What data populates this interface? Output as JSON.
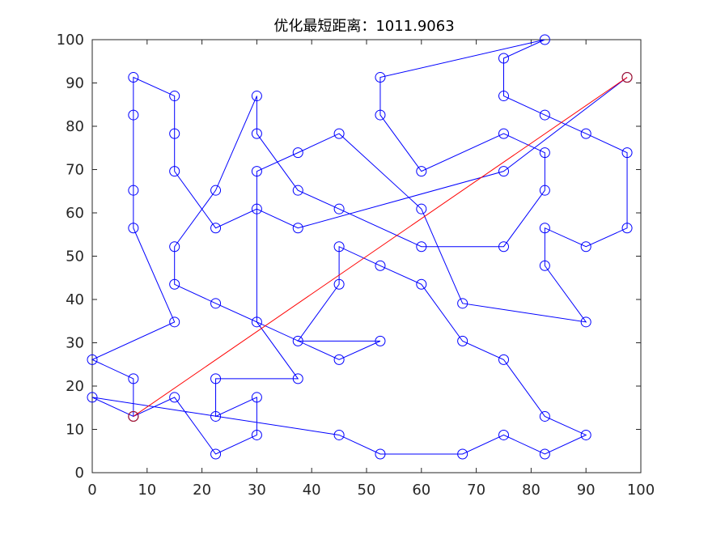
{
  "chart_data": {
    "type": "line",
    "title": "优化最短距离：1011.9063",
    "xlabel": "",
    "ylabel": "",
    "xlim": [
      0,
      100
    ],
    "ylim": [
      0,
      100
    ],
    "x_ticks": [
      "0",
      "10",
      "20",
      "30",
      "40",
      "50",
      "60",
      "70",
      "80",
      "90",
      "100"
    ],
    "y_ticks": [
      "0",
      "10",
      "20",
      "30",
      "40",
      "50",
      "60",
      "70",
      "80",
      "90",
      "100"
    ],
    "grid": false,
    "colors": {
      "route": "#0000ff",
      "start_end": "#ff0000",
      "endpoints": "#a2142f",
      "axes": "#262626"
    },
    "series": [
      {
        "line": "route",
        "marker": "circle",
        "x": [
          7.5,
          0,
          0,
          7.5,
          15,
          15,
          22.5,
          30,
          37.5,
          45,
          52.5,
          37.5,
          45,
          45,
          52.5,
          60,
          67.5,
          90,
          82.5,
          82.5,
          90,
          97.5,
          97.5,
          90,
          82.5,
          75,
          75,
          82.5,
          52.5,
          52.5,
          60,
          75,
          82.5,
          82.5,
          75,
          60,
          45,
          37.5,
          30,
          30,
          22.5,
          15,
          15,
          7.5,
          7.5,
          7.5,
          7.5,
          15,
          15,
          15,
          22.5,
          30,
          37.5,
          52.5,
          75,
          97.5
        ],
        "y": [
          13,
          17.4,
          26.1,
          21.7,
          34.8,
          43.5,
          39.1,
          34.8,
          30.4,
          26.1,
          30.4,
          30.4,
          43.5,
          52.2,
          47.8,
          43.5,
          30.4,
          26.1,
          13,
          4.3,
          8.7,
          56.5,
          73.9,
          78.3,
          82.6,
          87,
          95.7,
          100,
          91.3,
          82.6,
          69.6,
          78.3,
          73.9,
          65.2,
          52.2,
          52.2,
          60.9,
          65.2,
          78.3,
          87,
          65.2,
          52.2,
          43.5,
          56.5,
          65.2,
          82.6,
          91.3,
          87,
          78.3,
          69.6,
          56.5,
          60.9,
          56.5,
          60.9,
          69.6,
          91.3
        ]
      },
      {
        "line": "route",
        "marker": "circle",
        "x": [
          7.5,
          0,
          45,
          52.5,
          67.5,
          75,
          82.5,
          90,
          82.5,
          82.5,
          90,
          97.5,
          97.5,
          90,
          82.5,
          75,
          75,
          82.5,
          52.5,
          52.5,
          60,
          67.5,
          90,
          82.5,
          82.5,
          90,
          97.5
        ],
        "y": [
          13,
          17.4,
          8.7,
          4.3,
          4.3,
          8.7,
          4.3,
          8.7,
          13,
          4.3,
          8.7,
          56.5,
          73.9,
          78.3,
          82.6,
          87,
          95.7,
          100,
          91.3,
          82.6,
          69.6,
          39.1,
          34.8,
          47.8,
          56.5,
          52.2,
          56.5
        ]
      }
    ],
    "route": [
      [
        7.5,
        13
      ],
      [
        0,
        17.4
      ],
      [
        45,
        8.7
      ],
      [
        52.5,
        4.3
      ],
      [
        67.5,
        4.3
      ],
      [
        75,
        8.7
      ],
      [
        82.5,
        4.3
      ],
      [
        90,
        8.7
      ],
      [
        82.5,
        13
      ],
      [
        75,
        26.1
      ],
      [
        67.5,
        30.4
      ],
      [
        60,
        43.5
      ],
      [
        52.5,
        47.8
      ],
      [
        45,
        52.2
      ],
      [
        45,
        43.5
      ],
      [
        37.5,
        30.4
      ],
      [
        52.5,
        30.4
      ],
      [
        45,
        26.1
      ],
      [
        30,
        34.8
      ],
      [
        37.5,
        21.7
      ],
      [
        22.5,
        21.7
      ],
      [
        22.5,
        13
      ],
      [
        30,
        17.4
      ],
      [
        30,
        8.7
      ],
      [
        22.5,
        4.3
      ],
      [
        15,
        17.4
      ],
      [
        7.5,
        13
      ],
      [
        7.5,
        21.7
      ],
      [
        0,
        26.1
      ],
      [
        15,
        34.8
      ],
      [
        7.5,
        56.5
      ],
      [
        7.5,
        65.2
      ],
      [
        7.5,
        82.6
      ],
      [
        7.5,
        91.3
      ],
      [
        15,
        87
      ],
      [
        15,
        78.3
      ],
      [
        15,
        69.6
      ],
      [
        22.5,
        56.5
      ],
      [
        30,
        60.9
      ],
      [
        30,
        34.8
      ],
      [
        22.5,
        39.1
      ],
      [
        15,
        43.5
      ],
      [
        15,
        52.2
      ],
      [
        22.5,
        65.2
      ],
      [
        30,
        87
      ],
      [
        30,
        78.3
      ],
      [
        37.5,
        65.2
      ],
      [
        45,
        60.9
      ],
      [
        60,
        52.2
      ],
      [
        75,
        52.2
      ],
      [
        82.5,
        65.2
      ],
      [
        82.5,
        73.9
      ],
      [
        75,
        78.3
      ],
      [
        60,
        69.6
      ],
      [
        52.5,
        82.6
      ],
      [
        52.5,
        91.3
      ],
      [
        82.5,
        100
      ],
      [
        75,
        95.7
      ],
      [
        75,
        87
      ],
      [
        82.5,
        82.6
      ],
      [
        90,
        78.3
      ],
      [
        97.5,
        73.9
      ],
      [
        97.5,
        56.5
      ],
      [
        90,
        52.2
      ],
      [
        82.5,
        56.5
      ],
      [
        82.5,
        47.8
      ],
      [
        90,
        34.8
      ],
      [
        67.5,
        39.1
      ],
      [
        60,
        60.9
      ],
      [
        45,
        78.3
      ],
      [
        37.5,
        73.9
      ],
      [
        30,
        69.6
      ],
      [
        30,
        60.9
      ],
      [
        37.5,
        56.5
      ],
      [
        75,
        69.6
      ],
      [
        97.5,
        91.3
      ]
    ],
    "start_end_line": {
      "from": [
        7.5,
        13
      ],
      "to": [
        97.5,
        91.3
      ]
    }
  }
}
